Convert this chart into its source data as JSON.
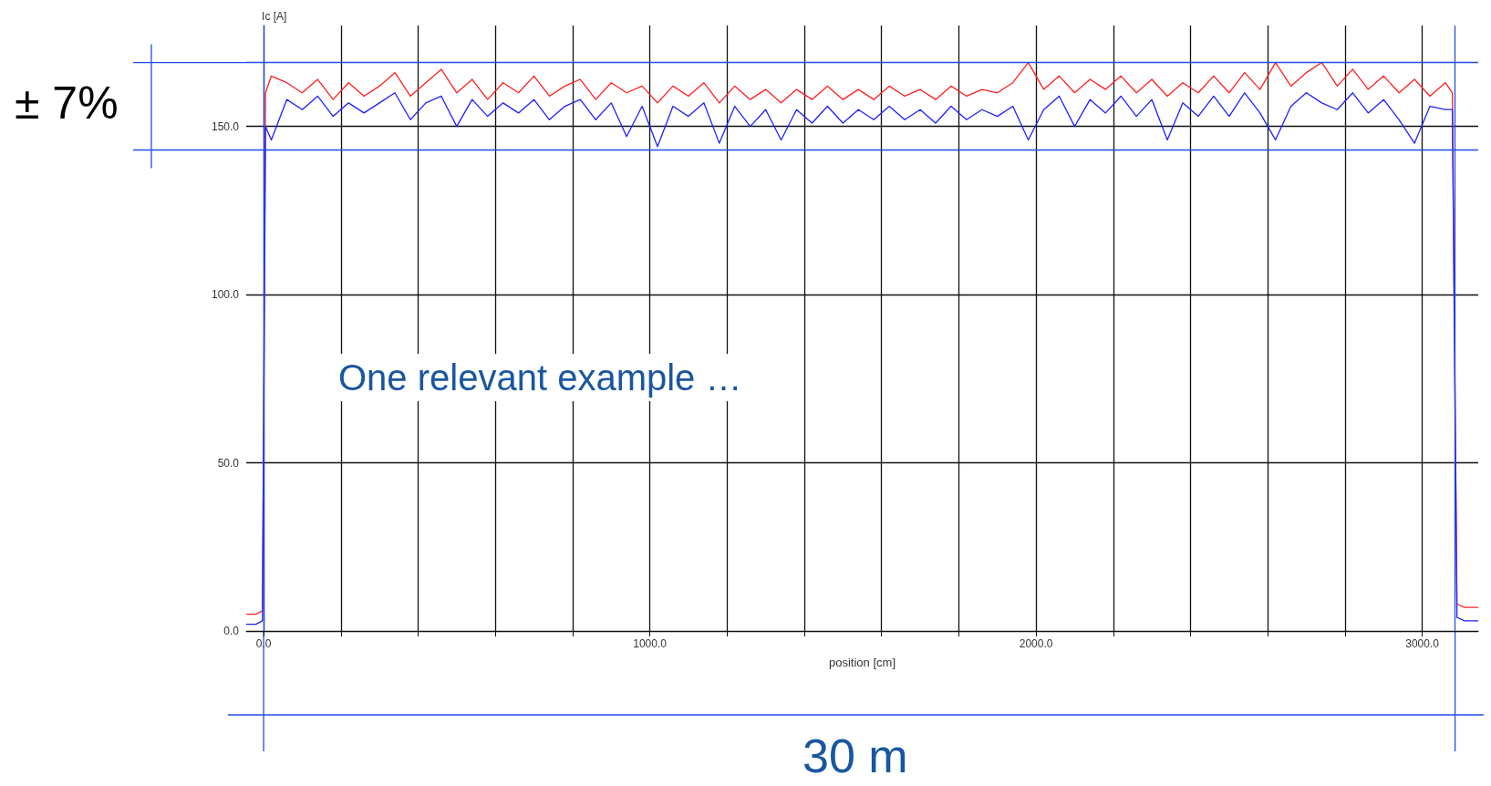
{
  "chart_data": {
    "type": "line",
    "xlabel": "position [cm]",
    "ylabel": "Ic [A]",
    "xlim": [
      -45,
      3145
    ],
    "ylim": [
      0,
      180
    ],
    "xticks": [
      {
        "value": 0,
        "label": "0.0"
      },
      {
        "value": 200,
        "label": null
      },
      {
        "value": 400,
        "label": null
      },
      {
        "value": 600,
        "label": null
      },
      {
        "value": 800,
        "label": null
      },
      {
        "value": 1000,
        "label": "1000.0"
      },
      {
        "value": 1200,
        "label": null
      },
      {
        "value": 1400,
        "label": null
      },
      {
        "value": 1600,
        "label": null
      },
      {
        "value": 1800,
        "label": null
      },
      {
        "value": 2000,
        "label": "2000.0"
      },
      {
        "value": 2200,
        "label": null
      },
      {
        "value": 2400,
        "label": null
      },
      {
        "value": 2600,
        "label": null
      },
      {
        "value": 2800,
        "label": null
      },
      {
        "value": 3000,
        "label": "3000.0"
      }
    ],
    "yticks": [
      {
        "value": 0,
        "label": "0.0"
      },
      {
        "value": 50,
        "label": "50.0"
      },
      {
        "value": 100,
        "label": "100.0"
      },
      {
        "value": 150,
        "label": "150.0"
      }
    ],
    "grid": true,
    "marker": "none",
    "line_style": "solid",
    "x": [
      -45,
      -20,
      -3,
      5,
      20,
      60,
      100,
      140,
      180,
      220,
      260,
      300,
      340,
      380,
      420,
      460,
      500,
      540,
      580,
      620,
      660,
      700,
      740,
      780,
      820,
      860,
      900,
      940,
      980,
      1020,
      1060,
      1100,
      1140,
      1180,
      1220,
      1260,
      1300,
      1340,
      1380,
      1420,
      1460,
      1500,
      1540,
      1580,
      1620,
      1660,
      1700,
      1740,
      1780,
      1820,
      1860,
      1900,
      1940,
      1980,
      2020,
      2060,
      2100,
      2140,
      2180,
      2220,
      2260,
      2300,
      2340,
      2380,
      2420,
      2460,
      2500,
      2540,
      2580,
      2620,
      2660,
      2700,
      2740,
      2780,
      2820,
      2860,
      2900,
      2940,
      2980,
      3020,
      3060,
      3078,
      3090,
      3110,
      3145
    ],
    "series": [
      {
        "color": "#ff2020",
        "values": [
          5,
          5,
          6,
          160,
          165,
          163,
          160,
          164,
          158,
          163,
          159,
          162,
          166,
          159,
          163,
          167,
          160,
          164,
          158,
          163,
          160,
          165,
          159,
          162,
          164,
          158,
          163,
          160,
          162,
          157,
          162,
          159,
          163,
          157,
          162,
          158,
          161,
          157,
          161,
          158,
          162,
          158,
          161,
          158,
          162,
          159,
          161,
          158,
          162,
          159,
          161,
          160,
          163,
          169,
          161,
          165,
          160,
          164,
          161,
          165,
          160,
          164,
          159,
          163,
          160,
          165,
          160,
          166,
          161,
          169,
          162,
          166,
          169,
          162,
          167,
          161,
          165,
          160,
          164,
          159,
          163,
          160,
          8,
          7,
          7
        ]
      },
      {
        "color": "#2020ff",
        "values": [
          2,
          2,
          3,
          150,
          146,
          158,
          155,
          159,
          153,
          157,
          154,
          157,
          160,
          152,
          157,
          159,
          150,
          158,
          153,
          157,
          154,
          158,
          152,
          156,
          158,
          152,
          157,
          147,
          156,
          144,
          156,
          153,
          157,
          145,
          156,
          150,
          155,
          146,
          155,
          151,
          156,
          151,
          155,
          152,
          156,
          152,
          155,
          151,
          156,
          152,
          155,
          153,
          156,
          146,
          155,
          159,
          150,
          158,
          154,
          159,
          153,
          158,
          146,
          157,
          153,
          159,
          153,
          160,
          154,
          146,
          156,
          160,
          157,
          155,
          160,
          154,
          158,
          152,
          145,
          156,
          155,
          155,
          4,
          3,
          3
        ]
      }
    ],
    "ref_lines": [
      {
        "axis": "y",
        "value": 169,
        "color": "#1f4fe8"
      },
      {
        "axis": "y",
        "value": 143,
        "color": "#1f4fe8"
      },
      {
        "axis": "x",
        "value": 0,
        "color": "#1f4fe8"
      },
      {
        "axis": "x",
        "value": 3085,
        "color": "#1f4fe8"
      }
    ],
    "annotations": [
      "± 7%",
      "One relevant example …",
      "30 m"
    ]
  }
}
